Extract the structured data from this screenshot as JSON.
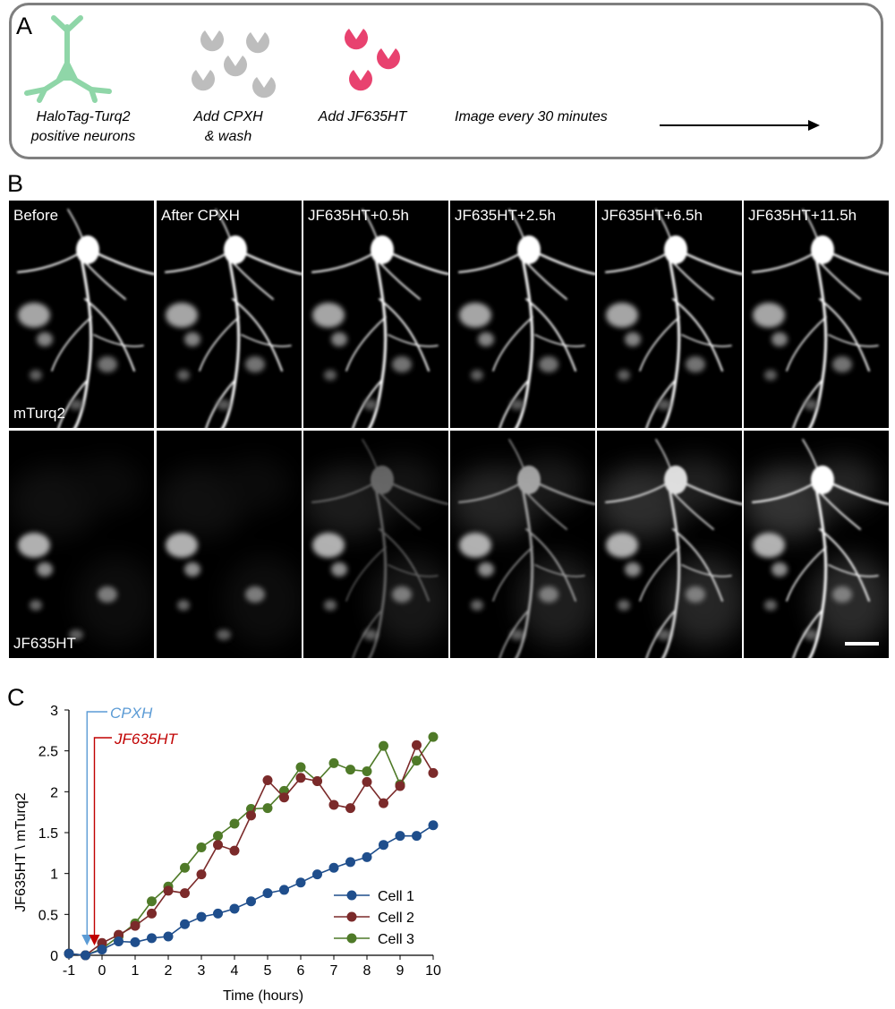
{
  "panel_a": {
    "letter": "A",
    "steps": [
      {
        "line1": "HaloTag-Turq2",
        "line2": "positive neurons"
      },
      {
        "line1": "Add CPXH",
        "line2": "& wash"
      },
      {
        "line1": "Add JF635HT",
        "line2": ""
      },
      {
        "line1": "Image every 30 minutes",
        "line2": ""
      }
    ],
    "colors": {
      "neuron": "#8fd6a8",
      "cpxh": "#bdbdbd",
      "jf635ht": "#e8426f",
      "border": "#7f7f7f"
    }
  },
  "panel_b": {
    "letter": "B",
    "columns": [
      "Before",
      "After CPXH",
      "JF635HT+0.5h",
      "JF635HT+2.5h",
      "JF635HT+6.5h",
      "JF635HT+11.5h"
    ],
    "row_labels": [
      "mTurq2",
      "JF635HT"
    ],
    "jf_intensity": [
      0.0,
      0.0,
      0.35,
      0.6,
      0.85,
      1.0
    ]
  },
  "panel_c": {
    "letter": "C",
    "annotations": {
      "cpxh": "CPXH",
      "jf635ht": "JF635HT"
    },
    "annotation_colors": {
      "cpxh": "#5b9bd5",
      "jf635ht": "#c00000"
    }
  },
  "chart_data": {
    "type": "line",
    "title": "",
    "xlabel": "Time (hours)",
    "ylabel": "JF635HT \\ mTurq2",
    "xlim": [
      -1,
      10
    ],
    "ylim": [
      0,
      3
    ],
    "xticks": [
      "-1",
      "0",
      "1",
      "2",
      "3",
      "4",
      "5",
      "6",
      "7",
      "8",
      "9",
      "10"
    ],
    "yticks": [
      "0",
      "0.5",
      "1",
      "1.5",
      "2",
      "2.5",
      "3"
    ],
    "legend_position": "bottom-right",
    "x": [
      -1,
      -0.5,
      0,
      0.5,
      1,
      1.5,
      2,
      2.5,
      3,
      3.5,
      4,
      4.5,
      5,
      5.5,
      6,
      6.5,
      7,
      7.5,
      8,
      8.5,
      9,
      9.5,
      10
    ],
    "series": [
      {
        "name": "Cell 1",
        "color": "#1f4e8c",
        "values": [
          0.02,
          0.0,
          0.07,
          0.17,
          0.16,
          0.21,
          0.23,
          0.38,
          0.47,
          0.51,
          0.57,
          0.66,
          0.76,
          0.8,
          0.89,
          0.99,
          1.07,
          1.14,
          1.2,
          1.35,
          1.46,
          1.46,
          1.59
        ]
      },
      {
        "name": "Cell 2",
        "color": "#7b2a2a",
        "values": [
          0.02,
          0.0,
          0.15,
          0.25,
          0.36,
          0.51,
          0.79,
          0.76,
          0.99,
          1.35,
          1.28,
          1.71,
          2.14,
          1.93,
          2.17,
          2.13,
          1.84,
          1.8,
          2.12,
          1.86,
          2.07,
          2.57,
          2.23
        ]
      },
      {
        "name": "Cell 3",
        "color": "#4f7a28",
        "values": [
          0.02,
          0.0,
          0.08,
          0.23,
          0.39,
          0.66,
          0.84,
          1.07,
          1.32,
          1.46,
          1.61,
          1.79,
          1.8,
          2.01,
          2.3,
          2.13,
          2.35,
          2.27,
          2.25,
          2.56,
          2.09,
          2.38,
          2.67
        ]
      }
    ],
    "markers": [
      {
        "label": "CPXH",
        "x": -0.75,
        "color": "#5b9bd5"
      },
      {
        "label": "JF635HT",
        "x": -0.5,
        "color": "#c00000"
      }
    ]
  }
}
